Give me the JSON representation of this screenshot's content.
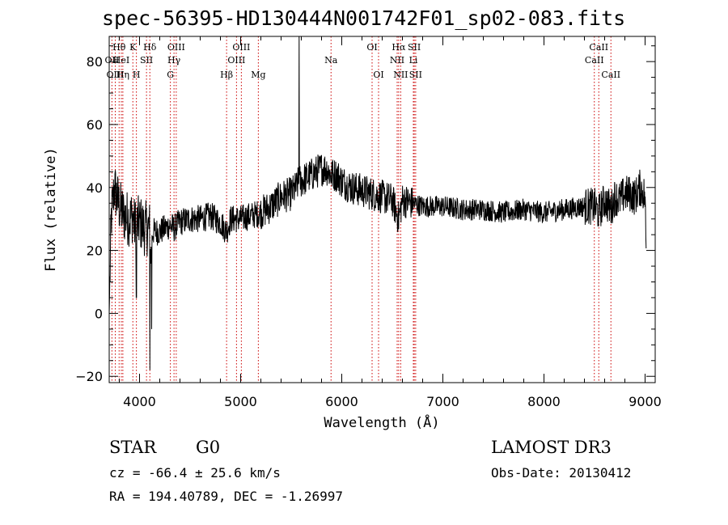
{
  "chart_data": {
    "type": "line",
    "title": "spec-56395-HD130444N001742F01_sp02-083.fits",
    "xlabel": "Wavelength (Å)",
    "ylabel": "Flux (relative)",
    "xlim": [
      3700,
      9100
    ],
    "ylim": [
      -22,
      88
    ],
    "xticks": [
      4000,
      5000,
      6000,
      7000,
      8000,
      9000
    ],
    "yticks": [
      -20,
      0,
      20,
      40,
      60,
      80
    ],
    "grid": false,
    "line_color": "#000000",
    "marker_color": "#cc0000",
    "spectrum_anchors": {
      "x": [
        3700,
        3720,
        3750,
        3800,
        3850,
        3900,
        3930,
        3950,
        3970,
        4000,
        4050,
        4100,
        4110,
        4130,
        4200,
        4300,
        4340,
        4400,
        4500,
        4600,
        4700,
        4800,
        4861,
        4900,
        5000,
        5100,
        5200,
        5300,
        5400,
        5500,
        5550,
        5580,
        5600,
        5700,
        5800,
        5850,
        5890,
        5920,
        5950,
        6000,
        6100,
        6200,
        6300,
        6400,
        6500,
        6563,
        6600,
        6700,
        6800,
        6900,
        7000,
        7200,
        7400,
        7600,
        7800,
        8000,
        8200,
        8400,
        8500,
        8542,
        8600,
        8662,
        8700,
        8750,
        8800,
        8850,
        8900,
        8950,
        8990,
        9000,
        9010
      ],
      "y": [
        0,
        30,
        40,
        34,
        31,
        30,
        31,
        28,
        28,
        29,
        27,
        27,
        18,
        26,
        26,
        28,
        27,
        29,
        30,
        30,
        31,
        29,
        26,
        30,
        30,
        31,
        32,
        34,
        37,
        38,
        40,
        42,
        42,
        44,
        46,
        46,
        44,
        44,
        44,
        42,
        40,
        39,
        38,
        37,
        36,
        30,
        36,
        35,
        34,
        34,
        34,
        33,
        33,
        32,
        33,
        32,
        33,
        34,
        34,
        32,
        36,
        33,
        37,
        36,
        38,
        38,
        37,
        40,
        38,
        36,
        20
      ]
    },
    "spike": {
      "x": 5578,
      "y": 88
    },
    "absorption_dips": [
      {
        "x": 3968,
        "y": 5
      },
      {
        "x": 4102,
        "y": -18
      },
      {
        "x": 4120,
        "y": -5
      }
    ],
    "line_markers": [
      {
        "label": "Hθ",
        "x": 3798,
        "row": 1
      },
      {
        "label": "OII",
        "x": 3727,
        "row": 2
      },
      {
        "label": "HeI",
        "x": 3820,
        "row": 2
      },
      {
        "label": "OIII",
        "x": 3760,
        "row": 3
      },
      {
        "label": "Hη",
        "x": 3835,
        "row": 3
      },
      {
        "label": "K",
        "x": 3934,
        "row": 1
      },
      {
        "label": "H",
        "x": 3969,
        "row": 3
      },
      {
        "label": "Hδ",
        "x": 4102,
        "row": 1
      },
      {
        "label": "SII",
        "x": 4069,
        "row": 2
      },
      {
        "label": "OIII",
        "x": 4363,
        "row": 1
      },
      {
        "label": "Hγ",
        "x": 4341,
        "row": 2
      },
      {
        "label": "G",
        "x": 4305,
        "row": 3
      },
      {
        "label": "OIII",
        "x": 5007,
        "row": 1
      },
      {
        "label": "OIII",
        "x": 4959,
        "row": 2
      },
      {
        "label": "Hβ",
        "x": 4861,
        "row": 3
      },
      {
        "label": "Mg",
        "x": 5175,
        "row": 3
      },
      {
        "label": "Na",
        "x": 5894,
        "row": 2
      },
      {
        "label": "OI",
        "x": 6300,
        "row": 1
      },
      {
        "label": "OI",
        "x": 6364,
        "row": 3
      },
      {
        "label": "Hα",
        "x": 6563,
        "row": 1
      },
      {
        "label": "NII",
        "x": 6548,
        "row": 2
      },
      {
        "label": "NII",
        "x": 6583,
        "row": 3
      },
      {
        "label": "SII",
        "x": 6717,
        "row": 1
      },
      {
        "label": "Li",
        "x": 6708,
        "row": 2
      },
      {
        "label": "SII",
        "x": 6731,
        "row": 3
      },
      {
        "label": "CaII",
        "x": 8542,
        "row": 1
      },
      {
        "label": "CaII",
        "x": 8498,
        "row": 2
      },
      {
        "label": "CaII",
        "x": 8662,
        "row": 3
      }
    ]
  },
  "info": {
    "object_class": "STAR",
    "subclass": "G0",
    "survey": "LAMOST DR3",
    "redshift_line": "cz = -66.4 ± 25.6 km/s",
    "obs_date_line": "Obs-Date: 20130412",
    "coords_line": "RA = 194.40789, DEC =  -1.26997"
  }
}
